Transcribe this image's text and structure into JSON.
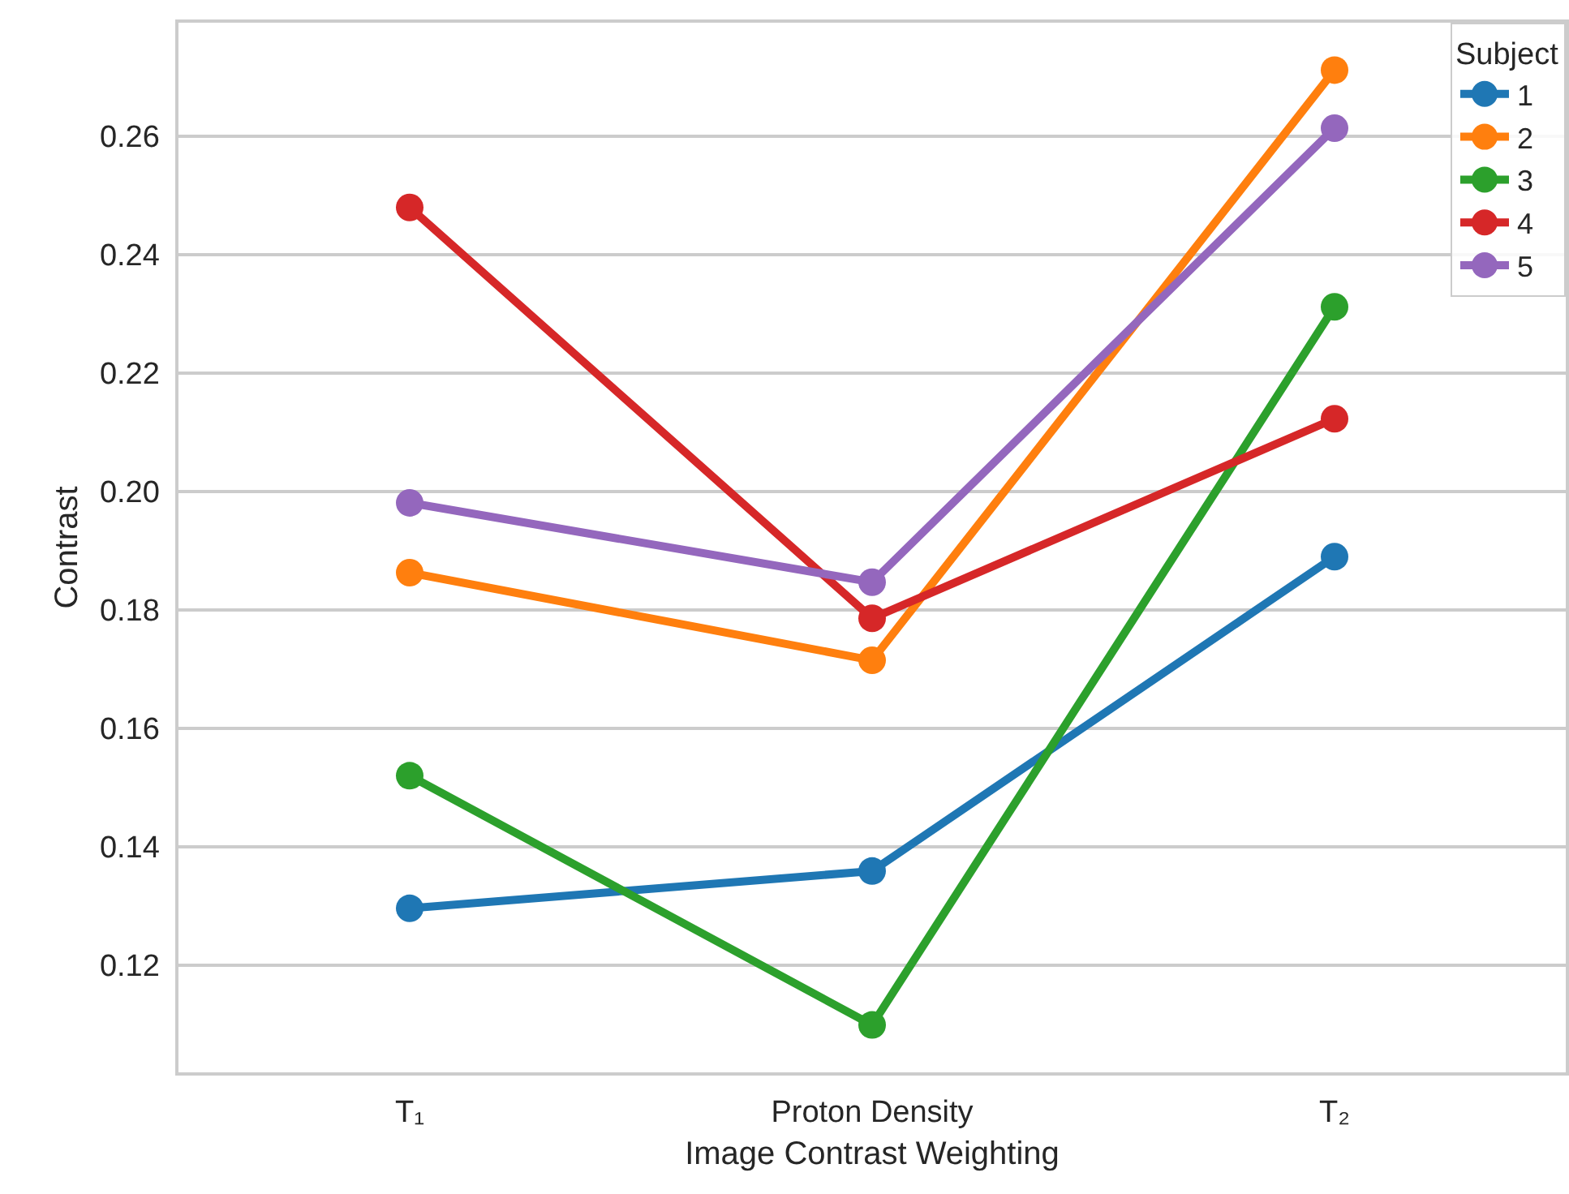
{
  "chart_data": {
    "type": "line",
    "xlabel": "Image Contrast Weighting",
    "ylabel": "Contrast",
    "legend_title": "Subject",
    "categories": [
      "T₁",
      "Proton Density",
      "T₂"
    ],
    "series": [
      {
        "name": "1",
        "color": "#1f77b4",
        "values": [
          0.1296,
          0.1359,
          0.189
        ]
      },
      {
        "name": "2",
        "color": "#ff7f0e",
        "values": [
          0.1863,
          0.1715,
          0.2712
        ]
      },
      {
        "name": "3",
        "color": "#2ca02c",
        "values": [
          0.152,
          0.1099,
          0.2312
        ]
      },
      {
        "name": "4",
        "color": "#d62728",
        "values": [
          0.248,
          0.1786,
          0.2123
        ]
      },
      {
        "name": "5",
        "color": "#9467bd",
        "values": [
          0.1981,
          0.1847,
          0.2614
        ]
      }
    ],
    "ylim": [
      0.1019,
      0.2792
    ],
    "yticks": [
      {
        "value": 0.12,
        "label": "0.12"
      },
      {
        "value": 0.14,
        "label": "0.14"
      },
      {
        "value": 0.16,
        "label": "0.16"
      },
      {
        "value": 0.18,
        "label": "0.18"
      },
      {
        "value": 0.2,
        "label": "0.20"
      },
      {
        "value": 0.22,
        "label": "0.22"
      },
      {
        "value": 0.24,
        "label": "0.24"
      },
      {
        "value": 0.26,
        "label": "0.26"
      }
    ],
    "grid": "y",
    "legend": "top right",
    "marker": "circle",
    "line_style": "solid"
  }
}
